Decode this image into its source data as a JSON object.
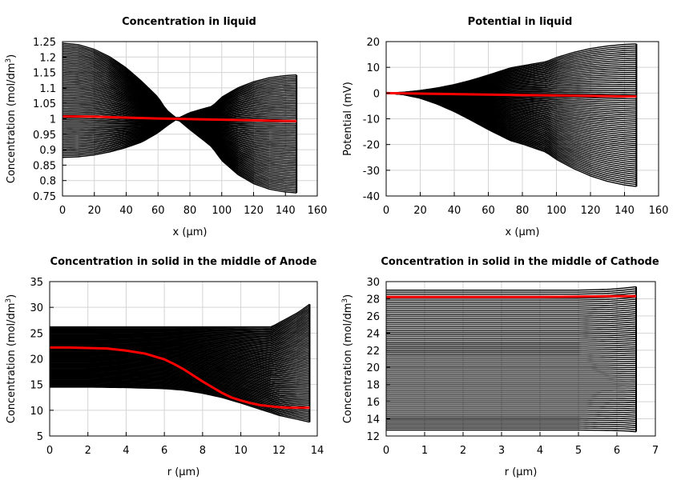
{
  "chart_data": [
    {
      "type": "line",
      "title": "Concentration in liquid",
      "xlabel": "x (µm)",
      "ylabel": "Concentration (mol/dm",
      "ylabel_sup": "3",
      "ylabel_tail": ")",
      "xlim": [
        0,
        160
      ],
      "ylim": [
        0.75,
        1.25
      ],
      "xticks": [
        "0",
        "20",
        "40",
        "60",
        "80",
        "100",
        "120",
        "140",
        "160"
      ],
      "yticks": [
        "0.75",
        "0.8",
        "0.85",
        "0.9",
        "0.95",
        "1",
        "1.05",
        "1.1",
        "1.15",
        "1.2",
        "1.25"
      ],
      "grid": true,
      "band": {
        "x": [
          0,
          10,
          20,
          30,
          40,
          50,
          60,
          65,
          72,
          80,
          90,
          94,
          100,
          110,
          120,
          130,
          140,
          147
        ],
        "upper": [
          1.245,
          1.24,
          1.225,
          1.2,
          1.165,
          1.12,
          1.07,
          1.03,
          1.0,
          1.02,
          1.035,
          1.04,
          1.07,
          1.1,
          1.12,
          1.133,
          1.14,
          1.142
        ],
        "lower": [
          0.875,
          0.877,
          0.883,
          0.893,
          0.907,
          0.925,
          0.955,
          0.975,
          1.0,
          0.965,
          0.925,
          0.908,
          0.865,
          0.82,
          0.79,
          0.772,
          0.763,
          0.76
        ]
      },
      "series": [
        {
          "color": "#ff0000",
          "x": [
            0,
            20,
            40,
            60,
            72,
            80,
            100,
            120,
            140,
            147
          ],
          "y": [
            1.008,
            1.007,
            1.004,
            1.001,
            1.0,
            0.999,
            0.997,
            0.995,
            0.993,
            0.993
          ]
        }
      ]
    },
    {
      "type": "line",
      "title": "Potential in liquid",
      "xlabel": "x (µm)",
      "ylabel": "Potential (mV)",
      "xlim": [
        0,
        160
      ],
      "ylim": [
        -40,
        20
      ],
      "xticks": [
        "0",
        "20",
        "40",
        "60",
        "80",
        "100",
        "120",
        "140",
        "160"
      ],
      "yticks": [
        "-40",
        "-30",
        "-20",
        "-10",
        "0",
        "10",
        "20"
      ],
      "grid": true,
      "band": {
        "x": [
          0,
          10,
          20,
          30,
          40,
          50,
          60,
          73,
          80,
          94,
          100,
          110,
          120,
          130,
          140,
          147
        ],
        "upper": [
          0,
          0.3,
          1.0,
          2.0,
          3.3,
          5.0,
          7.0,
          9.8,
          10.6,
          12.2,
          13.8,
          15.8,
          17.3,
          18.3,
          18.9,
          19.1
        ],
        "lower": [
          0,
          -0.6,
          -2.0,
          -4.3,
          -7.2,
          -10.6,
          -14.2,
          -18.5,
          -19.8,
          -23.0,
          -25.8,
          -29.3,
          -32.2,
          -34.3,
          -35.7,
          -36.3
        ]
      },
      "series": [
        {
          "color": "#ff0000",
          "x": [
            0,
            20,
            40,
            60,
            80,
            100,
            120,
            140,
            147
          ],
          "y": [
            0,
            -0.2,
            -0.4,
            -0.6,
            -0.8,
            -0.9,
            -1.1,
            -1.3,
            -1.3
          ]
        }
      ]
    },
    {
      "type": "line",
      "title": "Concentration in solid in the middle of Anode",
      "xlabel": "r (µm)",
      "ylabel": "Concentration (mol/dm",
      "ylabel_sup": "3",
      "ylabel_tail": ")",
      "xlim": [
        0,
        14
      ],
      "ylim": [
        5,
        35
      ],
      "xticks": [
        "0",
        "2",
        "4",
        "6",
        "8",
        "10",
        "12",
        "14"
      ],
      "yticks": [
        "5",
        "10",
        "15",
        "20",
        "25",
        "30",
        "35"
      ],
      "grid": true,
      "band": {
        "x": [
          0,
          2,
          4,
          6,
          7,
          8,
          9,
          10,
          11,
          11.6,
          12,
          13,
          13.6
        ],
        "upper": [
          26.2,
          26.2,
          26.2,
          26.2,
          26.2,
          26.2,
          26.2,
          26.2,
          26.2,
          26.2,
          27.0,
          29.0,
          30.6
        ],
        "lower": [
          14.5,
          14.5,
          14.4,
          14.2,
          13.9,
          13.3,
          12.5,
          11.4,
          10.2,
          9.5,
          9.0,
          8.2,
          7.7
        ]
      },
      "series": [
        {
          "color": "#ff0000",
          "x": [
            0,
            1,
            2,
            3,
            4,
            5,
            6,
            6.5,
            7,
            7.5,
            8,
            8.5,
            9,
            9.5,
            10,
            10.5,
            11,
            11.5,
            12,
            12.5,
            13,
            13.6
          ],
          "y": [
            22.2,
            22.2,
            22.1,
            22.0,
            21.6,
            21.0,
            19.9,
            19.0,
            18.0,
            16.8,
            15.6,
            14.5,
            13.4,
            12.5,
            11.9,
            11.4,
            11.0,
            10.8,
            10.6,
            10.5,
            10.5,
            10.5
          ]
        }
      ]
    },
    {
      "type": "line",
      "title": "Concentration in solid in the middle of Cathode",
      "xlabel": "r (µm)",
      "ylabel": "Concentration (mol/dm",
      "ylabel_sup": "3",
      "ylabel_tail": ")",
      "xlim": [
        0,
        7
      ],
      "ylim": [
        12,
        30
      ],
      "xticks": [
        "0",
        "1",
        "2",
        "3",
        "4",
        "5",
        "6",
        "7"
      ],
      "yticks": [
        "12",
        "14",
        "16",
        "18",
        "20",
        "22",
        "24",
        "26",
        "28",
        "30"
      ],
      "grid": true,
      "band": {
        "x": [
          0,
          1,
          2,
          3,
          4,
          5,
          5.8,
          6.2,
          6.5
        ],
        "upper": [
          29.0,
          29.0,
          29.0,
          29.0,
          29.0,
          29.0,
          29.1,
          29.25,
          29.4
        ],
        "lower": [
          12.7,
          12.7,
          12.7,
          12.7,
          12.7,
          12.7,
          12.65,
          12.6,
          12.5
        ]
      },
      "series": [
        {
          "color": "#ff0000",
          "x": [
            0,
            1,
            2,
            3,
            4,
            5,
            6,
            6.5
          ],
          "y": [
            28.2,
            28.2,
            28.2,
            28.2,
            28.2,
            28.25,
            28.3,
            28.3
          ]
        }
      ]
    }
  ]
}
